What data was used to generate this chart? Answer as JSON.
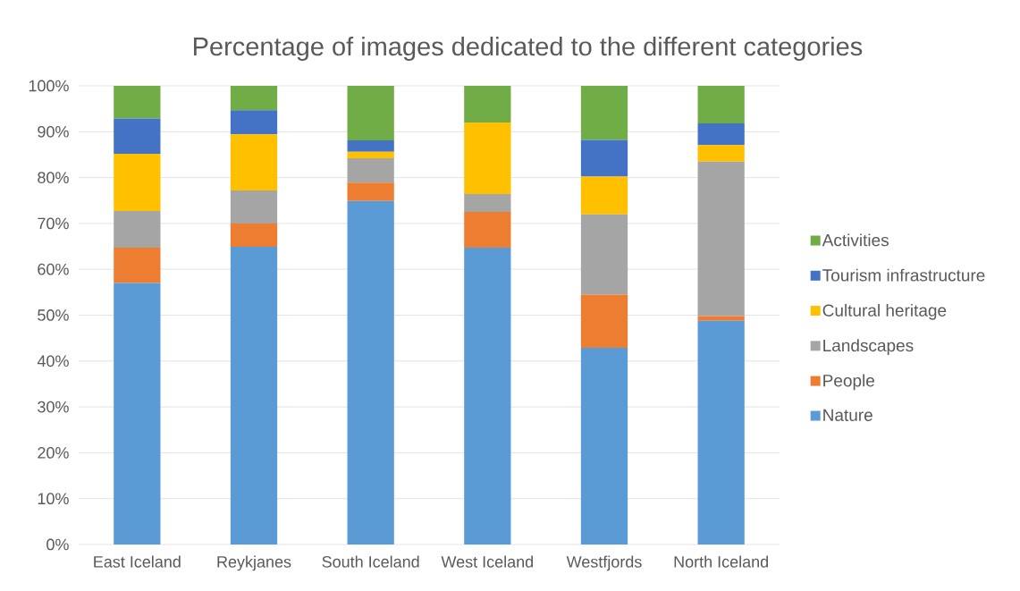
{
  "chart_data": {
    "type": "bar",
    "stacked": true,
    "title": "Percentage of images dedicated to the different categories",
    "categories": [
      "East Iceland",
      "Reykjanes",
      "South Iceland",
      "West Iceland",
      "Westfjords",
      "North Iceland"
    ],
    "series": [
      {
        "name": "Nature",
        "color": "#5b9bd5",
        "values": [
          57.0,
          64.9,
          74.9,
          64.7,
          42.9,
          48.8
        ]
      },
      {
        "name": "People",
        "color": "#ed7d31",
        "values": [
          7.7,
          5.1,
          4.0,
          7.8,
          11.6,
          1.0
        ]
      },
      {
        "name": "Landscapes",
        "color": "#a5a5a5",
        "values": [
          8.0,
          7.2,
          5.3,
          3.9,
          17.5,
          33.7
        ]
      },
      {
        "name": "Cultural heritage",
        "color": "#ffc000",
        "values": [
          12.5,
          12.2,
          1.4,
          15.6,
          8.2,
          3.6
        ]
      },
      {
        "name": "Tourism infrastructure",
        "color": "#4472c4",
        "values": [
          7.7,
          5.3,
          2.5,
          0,
          8.0,
          4.7
        ]
      },
      {
        "name": "Activities",
        "color": "#70ad47",
        "values": [
          7.1,
          5.3,
          11.9,
          8.0,
          11.8,
          8.2
        ]
      }
    ],
    "ylim": [
      0,
      100
    ],
    "yticks": [
      {
        "value": 0,
        "label": "0%"
      },
      {
        "value": 10,
        "label": "10%"
      },
      {
        "value": 20,
        "label": "20%"
      },
      {
        "value": 30,
        "label": "30%"
      },
      {
        "value": 40,
        "label": "40%"
      },
      {
        "value": 50,
        "label": "50%"
      },
      {
        "value": 60,
        "label": "60%"
      },
      {
        "value": 70,
        "label": "70%"
      },
      {
        "value": 80,
        "label": "80%"
      },
      {
        "value": 90,
        "label": "90%"
      },
      {
        "value": 100,
        "label": "100%"
      }
    ],
    "grid": "y",
    "legend": "right"
  }
}
